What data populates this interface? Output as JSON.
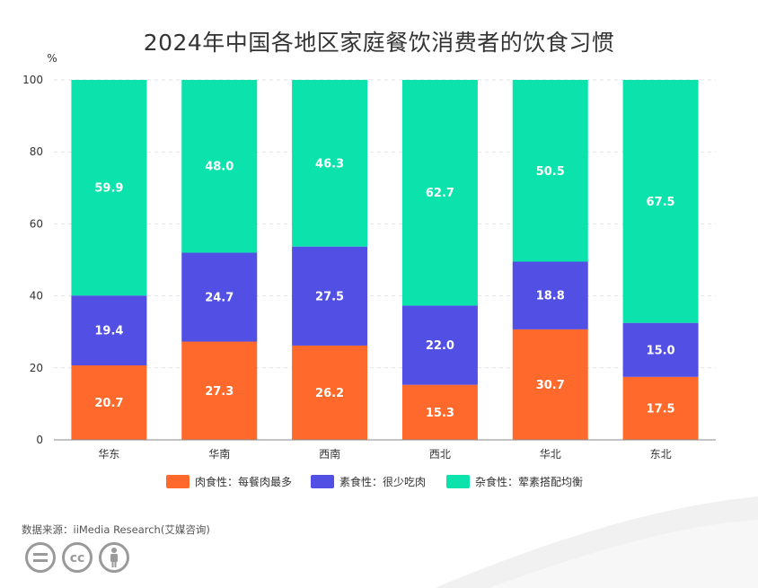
{
  "title": "2024年中国各地区家庭餐饮消费者的饮食习惯",
  "source": "数据来源：iiMedia Research(艾媒咨询)",
  "icons": [
    "equals-circle-icon",
    "cc-icon",
    "person-icon"
  ],
  "chart_data": {
    "type": "bar",
    "stacked": true,
    "categories": [
      "华东",
      "华南",
      "西南",
      "西北",
      "华北",
      "东北"
    ],
    "series": [
      {
        "name": "肉食性：每餐肉最多",
        "color": "#FF6A2C",
        "values": [
          20.7,
          27.3,
          26.2,
          15.3,
          30.7,
          17.5
        ]
      },
      {
        "name": "素食性：很少吃肉",
        "color": "#524FE4",
        "values": [
          19.4,
          24.7,
          27.5,
          22.0,
          18.8,
          15.0
        ]
      },
      {
        "name": "杂食性：荤素搭配均衡",
        "color": "#0CE3AC",
        "values": [
          59.9,
          48.0,
          46.3,
          62.7,
          50.5,
          67.5
        ]
      }
    ],
    "ylabel": "%",
    "ylim": [
      0,
      100
    ],
    "yticks": [
      0,
      20,
      40,
      60,
      80,
      100
    ],
    "grid": true,
    "legend": "bottom"
  }
}
